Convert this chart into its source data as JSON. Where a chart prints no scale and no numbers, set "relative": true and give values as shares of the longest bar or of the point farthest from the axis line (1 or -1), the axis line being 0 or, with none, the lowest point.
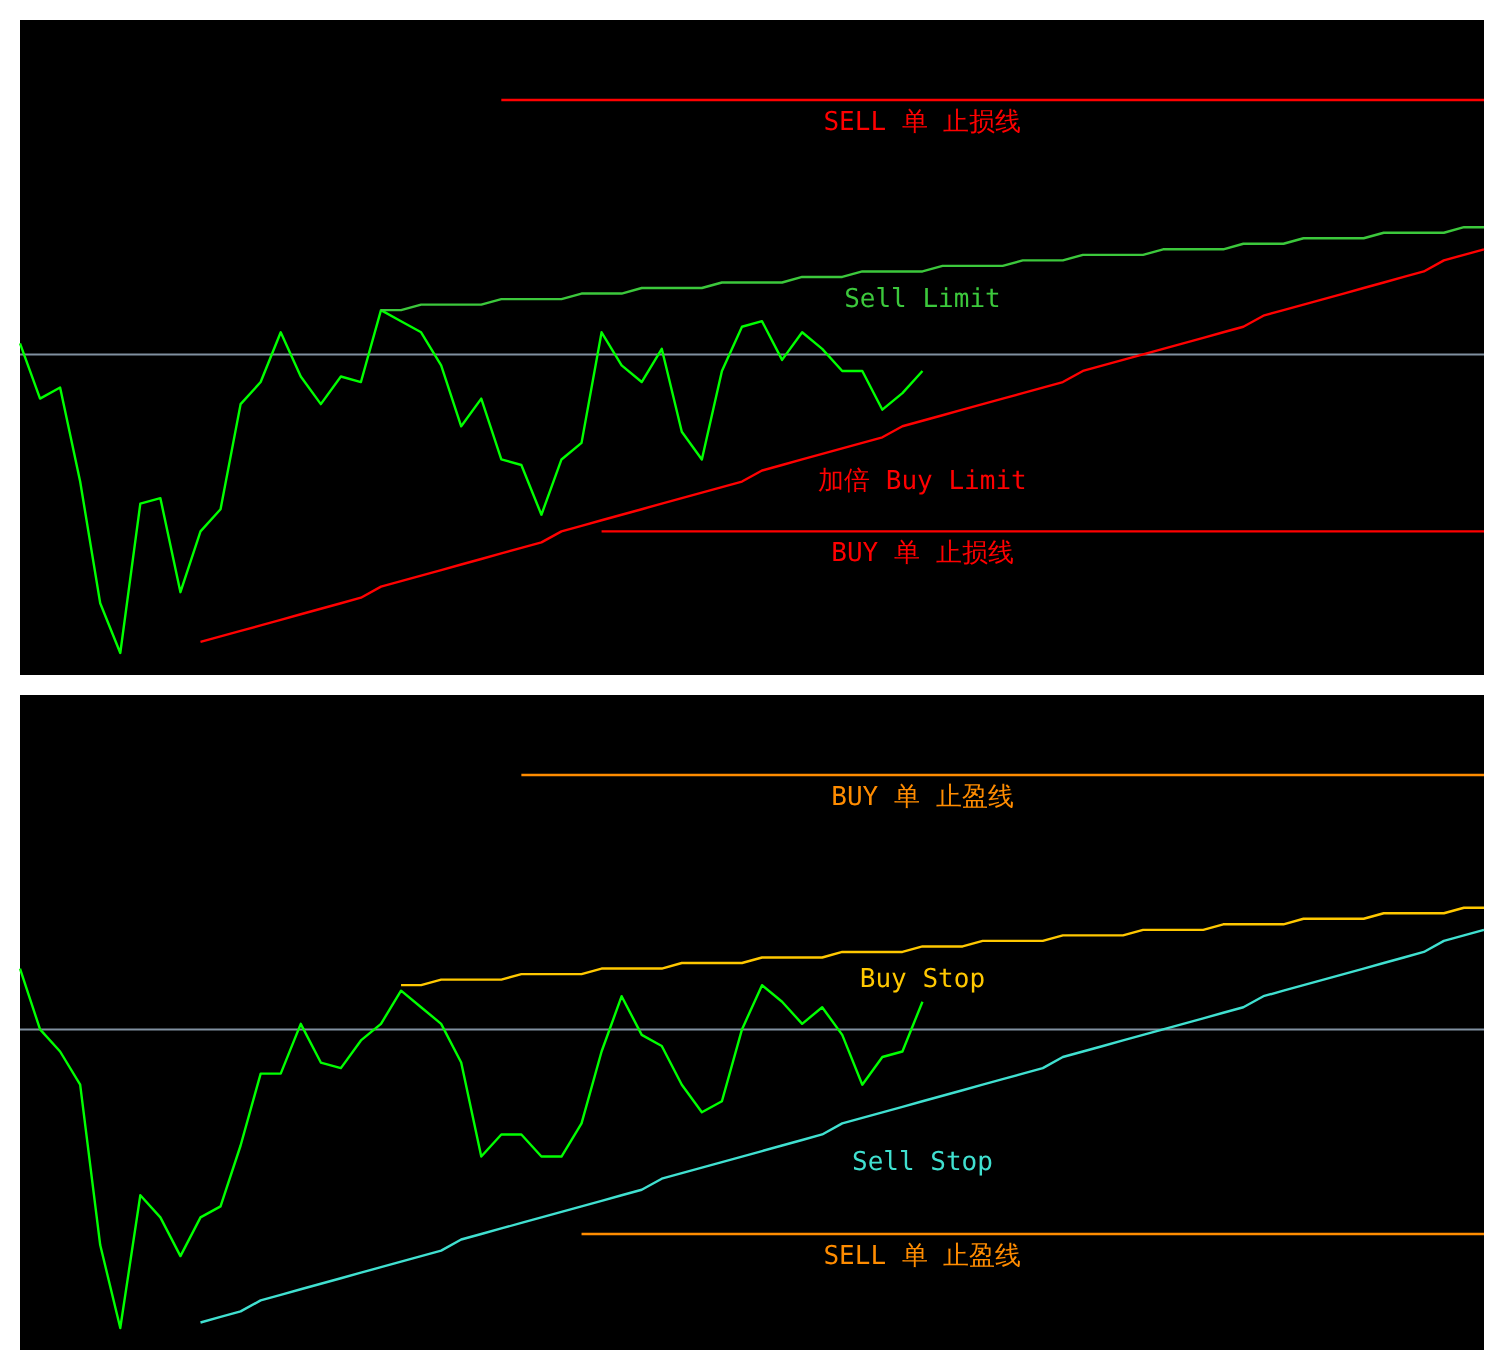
{
  "chart_data": [
    {
      "type": "line",
      "relative": true,
      "categories": [
        null,
        null,
        null,
        null,
        null,
        null,
        null,
        null,
        null,
        null,
        null,
        null,
        null,
        null,
        null,
        null,
        null,
        null,
        null,
        null,
        null,
        null,
        null,
        null,
        null,
        null,
        null,
        null,
        null,
        null,
        null,
        null,
        null,
        null,
        null,
        null,
        null,
        null,
        null,
        null,
        null,
        null,
        null,
        null,
        null,
        null,
        null,
        null,
        null,
        null,
        null,
        null,
        null,
        null,
        null,
        null,
        null,
        null,
        null,
        null,
        null,
        null,
        null,
        null,
        null,
        null,
        null,
        null,
        null,
        null,
        null,
        null,
        null,
        null
      ],
      "ref_lines": [
        {
          "axis": "y",
          "value": 0.54,
          "color": "#8090a0"
        }
      ],
      "series": [
        {
          "color": "#00ff00",
          "values": [
            0.56,
            0.46,
            0.48,
            0.31,
            0.09,
            0.0,
            0.27,
            0.28,
            0.11,
            0.22,
            0.26,
            0.45,
            0.49,
            0.58,
            0.5,
            0.45,
            0.5,
            0.49,
            0.62,
            0.6,
            0.58,
            0.52,
            0.41,
            0.46,
            0.35,
            0.34,
            0.25,
            0.35,
            0.38,
            0.58,
            0.52,
            0.49,
            0.55,
            0.4,
            0.35,
            0.51,
            0.59,
            0.6,
            0.53,
            0.58,
            0.55,
            0.51,
            0.51,
            0.44,
            0.47,
            0.51,
            null,
            null,
            null,
            null,
            null,
            null,
            null,
            null,
            null,
            null,
            null,
            null,
            null,
            null,
            null,
            null,
            null,
            null,
            null,
            null,
            null,
            null,
            null,
            null,
            null,
            null,
            null,
            null
          ]
        },
        {
          "name": "SELL 单 止损线",
          "color": "#ff0000",
          "values": [
            null,
            null,
            null,
            null,
            null,
            null,
            null,
            null,
            null,
            null,
            null,
            null,
            null,
            null,
            null,
            null,
            null,
            null,
            null,
            null,
            null,
            null,
            null,
            null,
            1.0,
            1.0,
            1.0,
            1.0,
            1.0,
            1.0,
            1.0,
            1.0,
            1.0,
            1.0,
            1.0,
            1.0,
            1.0,
            1.0,
            1.0,
            1.0,
            1.0,
            1.0,
            1.0,
            1.0,
            1.0,
            1.0,
            1.0,
            1.0,
            1.0,
            1.0,
            1.0,
            1.0,
            1.0,
            1.0,
            1.0,
            1.0,
            1.0,
            1.0,
            1.0,
            1.0,
            1.0,
            1.0,
            1.0,
            1.0,
            1.0,
            1.0,
            1.0,
            1.0,
            1.0,
            1.0,
            1.0,
            1.0,
            1.0,
            1.0
          ]
        },
        {
          "name": "Sell Limit",
          "color": "#3cc83c",
          "values": [
            null,
            null,
            null,
            null,
            null,
            null,
            null,
            null,
            null,
            null,
            null,
            null,
            null,
            null,
            null,
            null,
            null,
            null,
            0.62,
            0.62,
            0.63,
            0.63,
            0.63,
            0.63,
            0.64,
            0.64,
            0.64,
            0.64,
            0.65,
            0.65,
            0.65,
            0.66,
            0.66,
            0.66,
            0.66,
            0.67,
            0.67,
            0.67,
            0.67,
            0.68,
            0.68,
            0.68,
            0.69,
            0.69,
            0.69,
            0.69,
            0.7,
            0.7,
            0.7,
            0.7,
            0.71,
            0.71,
            0.71,
            0.72,
            0.72,
            0.72,
            0.72,
            0.73,
            0.73,
            0.73,
            0.73,
            0.74,
            0.74,
            0.74,
            0.75,
            0.75,
            0.75,
            0.75,
            0.76,
            0.76,
            0.76,
            0.76,
            0.77,
            0.77
          ]
        },
        {
          "name": "加倍  Buy Limit",
          "color": "#ff0000",
          "values": [
            null,
            null,
            null,
            null,
            null,
            null,
            null,
            null,
            null,
            0.02,
            0.03,
            0.04,
            0.05,
            0.06,
            0.07,
            0.08,
            0.09,
            0.1,
            0.12,
            0.13,
            0.14,
            0.15,
            0.16,
            0.17,
            0.18,
            0.19,
            0.2,
            0.22,
            0.23,
            0.24,
            0.25,
            0.26,
            0.27,
            0.28,
            0.29,
            0.3,
            0.31,
            0.33,
            0.34,
            0.35,
            0.36,
            0.37,
            0.38,
            0.39,
            0.41,
            0.42,
            0.43,
            0.44,
            0.45,
            0.46,
            0.47,
            0.48,
            0.49,
            0.51,
            0.52,
            0.53,
            0.54,
            0.55,
            0.56,
            0.57,
            0.58,
            0.59,
            0.61,
            0.62,
            0.63,
            0.64,
            0.65,
            0.66,
            0.67,
            0.68,
            0.69,
            0.71,
            0.72,
            0.73
          ]
        },
        {
          "name": "BUY 单 止损线",
          "color": "#ff0000",
          "values": [
            null,
            null,
            null,
            null,
            null,
            null,
            null,
            null,
            null,
            null,
            null,
            null,
            null,
            null,
            null,
            null,
            null,
            null,
            null,
            null,
            null,
            null,
            null,
            null,
            null,
            null,
            null,
            null,
            null,
            0.22,
            0.22,
            0.22,
            0.22,
            0.22,
            0.22,
            0.22,
            0.22,
            0.22,
            0.22,
            0.22,
            0.22,
            0.22,
            0.22,
            0.22,
            0.22,
            0.22,
            0.22,
            0.22,
            0.22,
            0.22,
            0.22,
            0.22,
            0.22,
            0.22,
            0.22,
            0.22,
            0.22,
            0.22,
            0.22,
            0.22,
            0.22,
            0.22,
            0.22,
            0.22,
            0.22,
            0.22,
            0.22,
            0.22,
            0.22,
            0.22,
            0.22,
            0.22,
            0.22,
            0.22
          ]
        }
      ]
    },
    {
      "type": "line",
      "relative": true,
      "categories": [
        null,
        null,
        null,
        null,
        null,
        null,
        null,
        null,
        null,
        null,
        null,
        null,
        null,
        null,
        null,
        null,
        null,
        null,
        null,
        null,
        null,
        null,
        null,
        null,
        null,
        null,
        null,
        null,
        null,
        null,
        null,
        null,
        null,
        null,
        null,
        null,
        null,
        null,
        null,
        null,
        null,
        null,
        null,
        null,
        null,
        null,
        null,
        null,
        null,
        null,
        null,
        null,
        null,
        null,
        null,
        null,
        null,
        null,
        null,
        null,
        null,
        null,
        null,
        null,
        null,
        null,
        null,
        null,
        null,
        null,
        null,
        null,
        null,
        null
      ],
      "ref_lines": [
        {
          "axis": "y",
          "value": 0.54,
          "color": "#8090a0"
        }
      ],
      "series": [
        {
          "color": "#00ff00",
          "values": [
            0.65,
            0.54,
            0.5,
            0.44,
            0.15,
            0.0,
            0.24,
            0.2,
            0.13,
            0.2,
            0.22,
            0.33,
            0.46,
            0.46,
            0.55,
            0.48,
            0.47,
            0.52,
            0.55,
            0.61,
            0.58,
            0.55,
            0.48,
            0.31,
            0.35,
            0.35,
            0.31,
            0.31,
            0.37,
            0.5,
            0.6,
            0.53,
            0.51,
            0.44,
            0.39,
            0.41,
            0.54,
            0.62,
            0.59,
            0.55,
            0.58,
            0.53,
            0.44,
            0.49,
            0.5,
            0.59,
            null,
            null,
            null,
            null,
            null,
            null,
            null,
            null,
            null,
            null,
            null,
            null,
            null,
            null,
            null,
            null,
            null,
            null,
            null,
            null,
            null,
            null,
            null,
            null,
            null,
            null,
            null,
            null
          ]
        },
        {
          "name": "BUY 单 止盈线",
          "color": "#ff8c00",
          "values": [
            null,
            null,
            null,
            null,
            null,
            null,
            null,
            null,
            null,
            null,
            null,
            null,
            null,
            null,
            null,
            null,
            null,
            null,
            null,
            null,
            null,
            null,
            null,
            null,
            null,
            1.0,
            1.0,
            1.0,
            1.0,
            1.0,
            1.0,
            1.0,
            1.0,
            1.0,
            1.0,
            1.0,
            1.0,
            1.0,
            1.0,
            1.0,
            1.0,
            1.0,
            1.0,
            1.0,
            1.0,
            1.0,
            1.0,
            1.0,
            1.0,
            1.0,
            1.0,
            1.0,
            1.0,
            1.0,
            1.0,
            1.0,
            1.0,
            1.0,
            1.0,
            1.0,
            1.0,
            1.0,
            1.0,
            1.0,
            1.0,
            1.0,
            1.0,
            1.0,
            1.0,
            1.0,
            1.0,
            1.0,
            1.0,
            1.0
          ]
        },
        {
          "name": "Buy Stop",
          "color": "#ffc800",
          "values": [
            null,
            null,
            null,
            null,
            null,
            null,
            null,
            null,
            null,
            null,
            null,
            null,
            null,
            null,
            null,
            null,
            null,
            null,
            null,
            0.62,
            0.62,
            0.63,
            0.63,
            0.63,
            0.63,
            0.64,
            0.64,
            0.64,
            0.64,
            0.65,
            0.65,
            0.65,
            0.65,
            0.66,
            0.66,
            0.66,
            0.66,
            0.67,
            0.67,
            0.67,
            0.67,
            0.68,
            0.68,
            0.68,
            0.68,
            0.69,
            0.69,
            0.69,
            0.7,
            0.7,
            0.7,
            0.7,
            0.71,
            0.71,
            0.71,
            0.71,
            0.72,
            0.72,
            0.72,
            0.72,
            0.73,
            0.73,
            0.73,
            0.73,
            0.74,
            0.74,
            0.74,
            0.74,
            0.75,
            0.75,
            0.75,
            0.75,
            0.76,
            0.76
          ]
        },
        {
          "name": "Sell Stop",
          "color": "#40e0d0",
          "values": [
            null,
            null,
            null,
            null,
            null,
            null,
            null,
            null,
            null,
            0.01,
            0.02,
            0.03,
            0.05,
            0.06,
            0.07,
            0.08,
            0.09,
            0.1,
            0.11,
            0.12,
            0.13,
            0.14,
            0.16,
            0.17,
            0.18,
            0.19,
            0.2,
            0.21,
            0.22,
            0.23,
            0.24,
            0.25,
            0.27,
            0.28,
            0.29,
            0.3,
            0.31,
            0.32,
            0.33,
            0.34,
            0.35,
            0.37,
            0.38,
            0.39,
            0.4,
            0.41,
            0.42,
            0.43,
            0.44,
            0.45,
            0.46,
            0.47,
            0.49,
            0.5,
            0.51,
            0.52,
            0.53,
            0.54,
            0.55,
            0.56,
            0.57,
            0.58,
            0.6,
            0.61,
            0.62,
            0.63,
            0.64,
            0.65,
            0.66,
            0.67,
            0.68,
            0.7,
            0.71,
            0.72
          ]
        },
        {
          "name": "SELL 单 止盈线",
          "color": "#ff8c00",
          "values": [
            null,
            null,
            null,
            null,
            null,
            null,
            null,
            null,
            null,
            null,
            null,
            null,
            null,
            null,
            null,
            null,
            null,
            null,
            null,
            null,
            null,
            null,
            null,
            null,
            null,
            null,
            null,
            null,
            0.17,
            0.17,
            0.17,
            0.17,
            0.17,
            0.17,
            0.17,
            0.17,
            0.17,
            0.17,
            0.17,
            0.17,
            0.17,
            0.17,
            0.17,
            0.17,
            0.17,
            0.17,
            0.17,
            0.17,
            0.17,
            0.17,
            0.17,
            0.17,
            0.17,
            0.17,
            0.17,
            0.17,
            0.17,
            0.17,
            0.17,
            0.17,
            0.17,
            0.17,
            0.17,
            0.17,
            0.17,
            0.17,
            0.17,
            0.17,
            0.17,
            0.17,
            0.17,
            0.17,
            0.17,
            0.17
          ]
        }
      ]
    }
  ]
}
